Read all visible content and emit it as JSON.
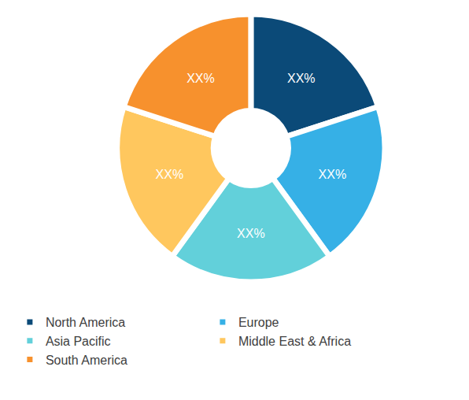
{
  "chart_data": {
    "type": "pie",
    "categories": [
      "North America",
      "Europe",
      "Asia Pacific",
      "Middle East & Africa",
      "South America"
    ],
    "values": [
      20,
      20,
      20,
      20,
      20
    ],
    "value_labels": [
      "XX%",
      "XX%",
      "XX%",
      "XX%",
      "XX%"
    ],
    "colors": [
      "#0b4a78",
      "#36b0e6",
      "#62d0da",
      "#ffc75e",
      "#f7912d"
    ],
    "data_labels": true,
    "legend": "bottom"
  }
}
